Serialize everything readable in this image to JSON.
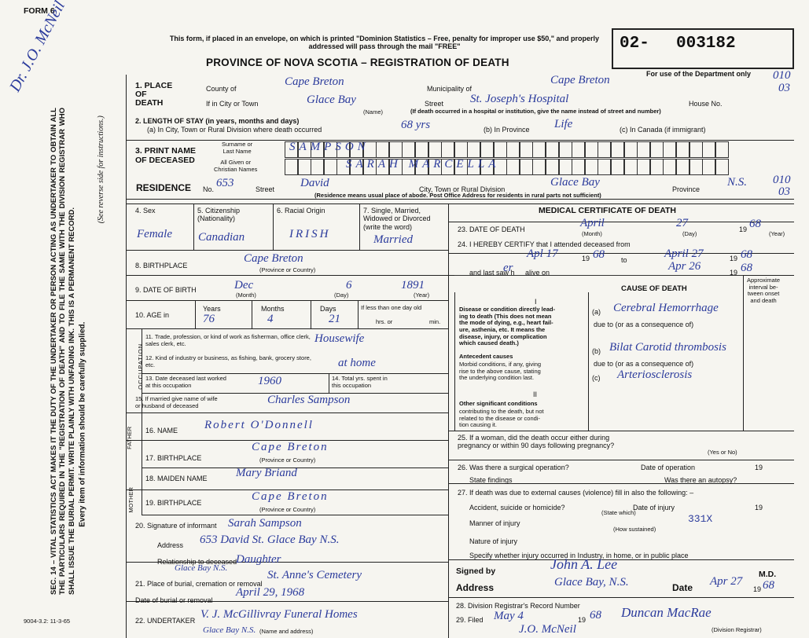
{
  "header": {
    "form": "FORM 6",
    "notice": "This form, if placed in an envelope, on which is printed \"Dominion Statistics – Free, penalty for improper use $50,\" and properly addressed will pass through the mail \"FREE\"",
    "title": "PROVINCE OF NOVA SCOTIA – REGISTRATION OF DEATH",
    "reg_prefix": "02-",
    "reg_number": "003182",
    "dept_use": "For use of the Department only",
    "footer": "9004-3.2: 11-3-65"
  },
  "margin": {
    "doctor": "Dr. J.O. McNeil",
    "sec_text": "SEC. 14 – VITAL STATISTICS ACT MAKES IT THE DUTY OF THE UNDERTAKER OR PERSON ACTING AS UNDERTAKER TO OBTAIN ALL THE PARTICULARS REQUIRED IN THE \"REGISTRATION OF DEATH\" AND TO FILE THE SAME WITH THE DIVISION REGISTRAR WHO SHALL ISSUE THE BURIAL PERMIT. WRITE PLAINLY WITH UNFADING INK. THIS IS A PERMANENT RECORD.",
    "every_item": "Every item of information should be carefully supplied.",
    "reverse": "(See reverse side for instructions.)",
    "bottom_note": "J.O. McNeil"
  },
  "place": {
    "label": "1. PLACE\nOF\nDEATH",
    "county_label": "County of",
    "county": "Cape Breton",
    "municipality_label": "Municipality of",
    "municipality": "Cape Breton",
    "city_label": "If in City or Town",
    "city": "Glace Bay",
    "name_hint": "(Name)",
    "street_label": "Street",
    "street": "St. Joseph's Hospital",
    "house_label": "House No.",
    "note": "(If death occurred in a hospital or institution, give the name instead of street and number)",
    "code_top": "010",
    "code_bottom": "03"
  },
  "stay": {
    "label": "2. LENGTH OF STAY (in years, months and days)",
    "a": "(a) In City, Town or Rural Division where death occurred",
    "a_value": "68 yrs",
    "b": "(b) In Province",
    "b_value": "Life",
    "c": "(c) In Canada (if immigrant)"
  },
  "deceased": {
    "label": "3. PRINT NAME\nOF DECEASED",
    "surname_label": "Surname or\nLast Name",
    "surname": "SAMPSON",
    "given_label": "All Given or\nChristian Names",
    "given": "SARAH MARCELLA"
  },
  "residence": {
    "label": "RESIDENCE",
    "no_label": "No.",
    "no": "653",
    "street_label": "Street",
    "street": "David",
    "city_label": "City, Town or Rural Division",
    "city": "Glace Bay",
    "province_label": "Province",
    "province": "N.S.",
    "note": "(Residence means usual place of abode. Post Office Address for residents in rural parts not sufficient)",
    "code_top": "010",
    "code_bottom": "03"
  },
  "personal": {
    "sex_label": "4. Sex",
    "sex": "Female",
    "citizenship_label": "5. Citizenship\n(Nationality)",
    "citizenship": "Canadian",
    "racial_label": "6. Racial Origin",
    "racial": "IRISH",
    "marital_label": "7. Single, Married,\nWidowed or Divorced\n(write the word)",
    "marital": "Married",
    "birthplace_label": "8. BIRTHPLACE",
    "birthplace": "Cape Breton",
    "birthplace_hint": "(Province or Country)",
    "dob_label": "9. DATE OF BIRTH",
    "dob_month": "Dec",
    "dob_day": "6",
    "dob_year": "1891",
    "month_hint": "(Month)",
    "day_hint": "(Day)",
    "year_hint": "(Year)",
    "age_label": "10. AGE in",
    "years_label": "Years",
    "years": "76",
    "months_label": "Months",
    "months": "4",
    "days_label": "Days",
    "days": "21",
    "less_label": "If less than one day old",
    "hrs": "hrs. or",
    "min": "min."
  },
  "occupation": {
    "label": "OCCUPATION",
    "q11": "11. Trade, profession, or kind of work as fisherman, office clerk, sales clerk, etc.",
    "v11": "Housewife",
    "q12": "12. Kind of industry or business, as fishing, bank, grocery store, etc.",
    "v12": "at home",
    "q13": "13. Date deceased last worked\nat this occupation",
    "v13": "1960",
    "q14": "14. Total yrs. spent in\nthis occupation",
    "q15": "15. If married give name of wife\nor husband of deceased",
    "v15": "Charles Sampson"
  },
  "family": {
    "father": "FATHER",
    "q16": "16. NAME",
    "v16": "Robert O'Donnell",
    "q17": "17. BIRTHPLACE",
    "v17": "Cape Breton",
    "hint17": "(Province or Country)",
    "mother": "MOTHER",
    "q18": "18. MAIDEN NAME",
    "v18": "Mary Briand",
    "q19": "19. BIRTHPLACE",
    "v19": "Cape Breton",
    "hint19": "(Province or Country)"
  },
  "informant": {
    "q20": "20. Signature of informant",
    "v20": "Sarah Sampson",
    "address_label": "Address",
    "address": "653 David St. Glace Bay N.S.",
    "relation_label": "Relationship to deceased",
    "relation": "Daughter"
  },
  "burial": {
    "place_above": "Glace Bay N.S.",
    "q21": "21. Place of burial, cremation or removal",
    "v21": "St. Anne's Cemetery",
    "date_label": "Date of burial or removal",
    "date": "April 29, 1968",
    "q22": "22. UNDERTAKER",
    "v22": "V. J. McGillivray Funeral Homes",
    "v22_below": "Glace Bay N.S.",
    "hint22": "(Name and address)"
  },
  "medical": {
    "header": "MEDICAL CERTIFICATE OF DEATH",
    "q23": "23. DATE OF DEATH",
    "month": "April",
    "day": "27",
    "year_prefix": "19",
    "year": "68",
    "month_hint": "(Month)",
    "day_hint": "(Day)",
    "year_hint": "(Year)",
    "q24": "24. I HEREBY CERTIFY that I attended deceased from",
    "from": "Apl 17",
    "from_prefix": "19",
    "from_year": "68",
    "to_label": "to",
    "to": "April 27",
    "to_prefix": "19",
    "to_year": "68",
    "last_saw": "and last saw h",
    "her": "er",
    "alive": "alive on",
    "on": "Apr 26",
    "on_prefix": "19",
    "on_year": "68"
  },
  "cause": {
    "header": "CAUSE OF DEATH",
    "interval": "Approximate\ninterval be-\ntween onset\nand death",
    "roman1": "I",
    "direct": "Disease or condition directly lead-\ning to death (This does not mean\nthe mode of dying, e.g., heart fail-\nure, asthenia, etc. It means the\ndisease, injury, or complication\nwhich caused death.)",
    "a_label": "(a)",
    "a": "Cerebral Hemorrhage",
    "due1": "due to (or as a consequence of)",
    "antecedent": "Antecedent causes",
    "morbid": "Morbid conditions, if any, giving\nrise to the above cause, stating\nthe underlying condition last.",
    "b_label": "(b)",
    "b": "Bilat Carotid thrombosis",
    "due2": "due to (or as a consequence of)",
    "c_label": "(c)",
    "c": "Arteriosclerosis",
    "roman2": "II",
    "other": "Other significant conditions",
    "other_text": "contributing to the death, but not\nrelated to the disease or condi-\ntion causing it."
  },
  "questions": {
    "q25": "25. If a woman, did the death occur either during\npregnancy or within 90 days following pregnancy?",
    "yes_no": "(Yes or No)",
    "q26": "26. Was there a surgical operation?",
    "date_operation": "Date of operation",
    "op_prefix": "19",
    "findings": "State findings",
    "autopsy": "Was there an autopsy?",
    "q27": "27. If death was due to external causes (violence) fill in also the following: –",
    "accident": "Accident, suicide or homicide?",
    "state_which": "(State which)",
    "date_injury": "Date of injury",
    "injury_prefix": "19",
    "code": "331X",
    "manner": "Manner of injury",
    "how": "(How sustained)",
    "nature": "Nature of injury",
    "specify": "Specify whether injury occurred in Industry, in home, or in public place"
  },
  "signature": {
    "signed_label": "Signed by",
    "signed": "John A. Lee",
    "md": "M.D.",
    "address_label": "Address",
    "address": "Glace Bay, N.S.",
    "date_label": "Date",
    "date": "Apr 27",
    "date_prefix": "19",
    "year": "68"
  },
  "registrar": {
    "q28": "28. Division Registrar's Record Number",
    "q29": "29. Filed",
    "filed": "May 4",
    "filed_prefix": "19",
    "filed_year": "68",
    "name": "Duncan MacRae",
    "hint": "(Division Registrar)"
  }
}
